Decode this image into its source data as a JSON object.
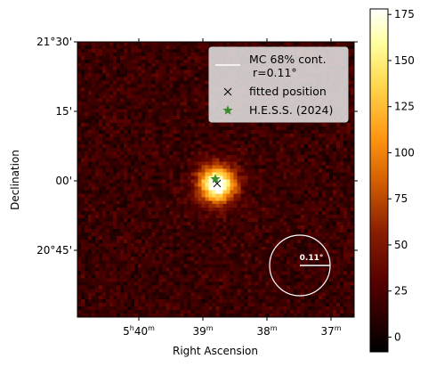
{
  "chart_data": {
    "type": "heatmap",
    "xlabel": "Right Ascension",
    "ylabel": "Declination",
    "x_ticks": [
      {
        "h": "5",
        "m": "40",
        "label": "5h40m"
      },
      {
        "h": "",
        "m": "39",
        "label": "39m"
      },
      {
        "h": "",
        "m": "38",
        "label": "38m"
      },
      {
        "h": "",
        "m": "37",
        "label": "37m"
      }
    ],
    "y_ticks": [
      {
        "label": "21°30'",
        "dec": 21.5
      },
      {
        "label": "15'",
        "dec": 21.25
      },
      {
        "label": "00'",
        "dec": 21.0
      },
      {
        "label": "20°45'",
        "dec": 20.75
      }
    ],
    "colorbar": {
      "range": [
        -8,
        178
      ],
      "ticks": [
        0,
        25,
        50,
        75,
        100,
        125,
        150,
        175
      ],
      "labels": [
        "0",
        "25",
        "50",
        "75",
        "100",
        "125",
        "150",
        "175"
      ],
      "colormap": "afmhot"
    },
    "source": {
      "ra_min": 38.78,
      "dec": 21.0,
      "peak": 178,
      "sigma_deg": 0.06
    },
    "legend": {
      "placement": "upper-right",
      "entries": [
        {
          "label": "MC 68% cont.",
          "label2": " r=0.11°",
          "marker": "line",
          "color": "#ffffff"
        },
        {
          "label": "fitted position",
          "marker": "x",
          "color": "#000000"
        },
        {
          "label": "H.E.S.S. (2024)",
          "marker": "star",
          "color": "#3a8a2e"
        }
      ]
    },
    "psf_circle": {
      "radius_deg": 0.11,
      "label": "0.11°"
    }
  }
}
